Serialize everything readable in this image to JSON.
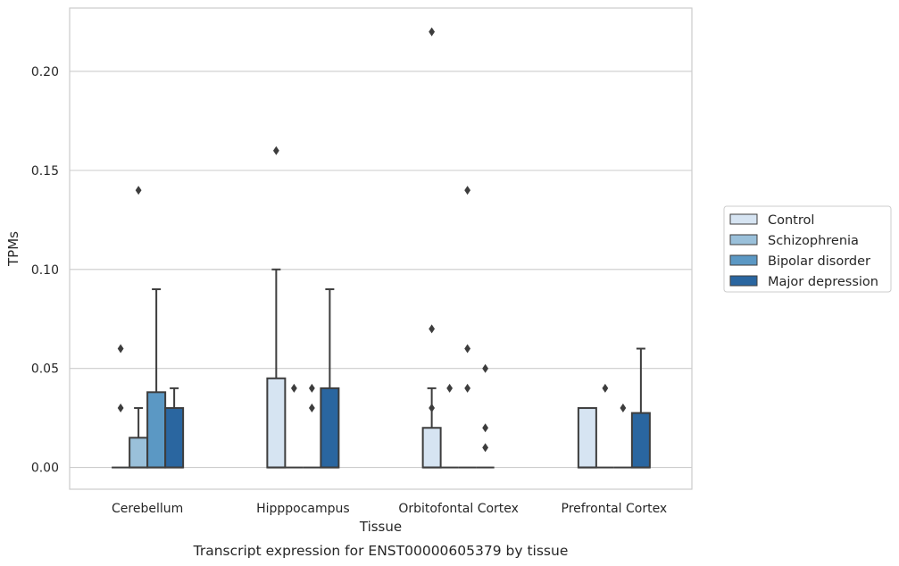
{
  "chart_data": {
    "type": "box",
    "caption": "Transcript expression for ENST00000605379 by tissue",
    "xlabel": "Tissue",
    "ylabel": "TPMs",
    "ylim": [
      -0.011,
      0.232
    ],
    "yticks": [
      0.0,
      0.05,
      0.1,
      0.15,
      0.2
    ],
    "ytick_labels": [
      "0.00",
      "0.05",
      "0.10",
      "0.15",
      "0.20"
    ],
    "grid": true,
    "legend_position": "right",
    "categories": [
      "Cerebellum",
      "Hipppocampus",
      "Orbitofontal Cortex",
      "Prefrontal Cortex"
    ],
    "series": [
      {
        "name": "Control",
        "color": "#d6e4f2",
        "boxes": [
          {
            "q1": 0,
            "median": 0,
            "q3": 0,
            "whisker_low": 0,
            "whisker_high": 0,
            "outliers": [
              0.03,
              0.06
            ]
          },
          {
            "q1": 0,
            "median": 0,
            "q3": 0.045,
            "whisker_low": 0,
            "whisker_high": 0.1,
            "outliers": [
              0.16
            ]
          },
          {
            "q1": 0,
            "median": 0,
            "q3": 0.02,
            "whisker_low": 0,
            "whisker_high": 0.04,
            "outliers": [
              0.03,
              0.07,
              0.22
            ]
          },
          {
            "q1": 0,
            "median": 0,
            "q3": 0.03,
            "whisker_low": 0,
            "whisker_high": 0.03,
            "outliers": []
          }
        ]
      },
      {
        "name": "Schizophrenia",
        "color": "#9ac0da",
        "boxes": [
          {
            "q1": 0,
            "median": 0,
            "q3": 0.015,
            "whisker_low": 0,
            "whisker_high": 0.03,
            "outliers": [
              0.14
            ]
          },
          {
            "q1": 0,
            "median": 0,
            "q3": 0,
            "whisker_low": 0,
            "whisker_high": 0,
            "outliers": [
              0.04
            ]
          },
          {
            "q1": 0,
            "median": 0,
            "q3": 0,
            "whisker_low": 0,
            "whisker_high": 0,
            "outliers": [
              0.04
            ]
          },
          {
            "q1": 0,
            "median": 0,
            "q3": 0,
            "whisker_low": 0,
            "whisker_high": 0,
            "outliers": [
              0.04
            ]
          }
        ]
      },
      {
        "name": "Bipolar disorder",
        "color": "#5b98c4",
        "boxes": [
          {
            "q1": 0,
            "median": 0,
            "q3": 0.038,
            "whisker_low": 0,
            "whisker_high": 0.09,
            "outliers": []
          },
          {
            "q1": 0,
            "median": 0,
            "q3": 0,
            "whisker_low": 0,
            "whisker_high": 0,
            "outliers": [
              0.03,
              0.04
            ]
          },
          {
            "q1": 0,
            "median": 0,
            "q3": 0,
            "whisker_low": 0,
            "whisker_high": 0,
            "outliers": [
              0.04,
              0.06,
              0.14
            ]
          },
          {
            "q1": 0,
            "median": 0,
            "q3": 0,
            "whisker_low": 0,
            "whisker_high": 0,
            "outliers": [
              0.03
            ]
          }
        ]
      },
      {
        "name": "Major depression",
        "color": "#2a66a0",
        "boxes": [
          {
            "q1": 0,
            "median": 0,
            "q3": 0.03,
            "whisker_low": 0,
            "whisker_high": 0.04,
            "outliers": []
          },
          {
            "q1": 0,
            "median": 0,
            "q3": 0.04,
            "whisker_low": 0,
            "whisker_high": 0.09,
            "outliers": []
          },
          {
            "q1": 0,
            "median": 0,
            "q3": 0,
            "whisker_low": 0,
            "whisker_high": 0,
            "outliers": [
              0.01,
              0.02,
              0.05
            ]
          },
          {
            "q1": 0,
            "median": 0,
            "q3": 0.0275,
            "whisker_low": 0,
            "whisker_high": 0.06,
            "outliers": []
          }
        ]
      }
    ]
  }
}
